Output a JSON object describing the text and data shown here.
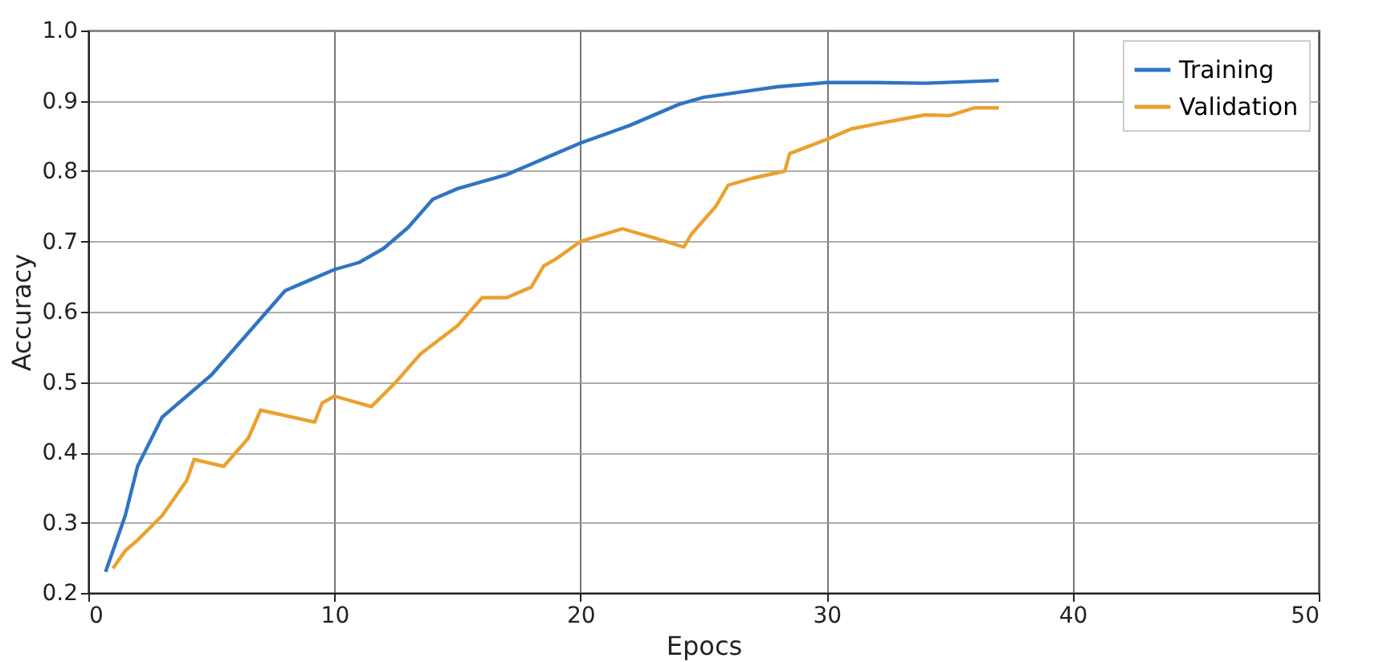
{
  "chart_data": {
    "type": "line",
    "xlabel": "Epocs",
    "ylabel": "Accuracy",
    "xlim": [
      0,
      50
    ],
    "xticks": [
      0,
      10,
      20,
      30,
      40,
      50
    ],
    "ylim": [
      0.2,
      1.0
    ],
    "yticks": [
      {
        "value": 0.2,
        "label": "0.2"
      },
      {
        "value": 0.3,
        "label": "0.3"
      },
      {
        "value": 0.4,
        "label": "0.4"
      },
      {
        "value": 0.5,
        "label": "0.5"
      },
      {
        "value": 0.6,
        "label": "0.6"
      },
      {
        "value": 0.7,
        "label": "0.7"
      },
      {
        "value": 0.8,
        "label": "0.8"
      },
      {
        "value": 0.9,
        "label": "0.9"
      },
      {
        "value": 1.0,
        "label": "1.0"
      }
    ],
    "grid": true,
    "legend": "top right",
    "series": [
      {
        "name": "Training",
        "color": "#2f74c4",
        "x": [
          0.7,
          1.5,
          2,
          3,
          4,
          5,
          6,
          7,
          8,
          9,
          10,
          11,
          12,
          13,
          14,
          15,
          16,
          17,
          18,
          19,
          20,
          22,
          24,
          25,
          27,
          28,
          30,
          32,
          34,
          37
        ],
        "values": [
          0.23,
          0.31,
          0.38,
          0.45,
          0.48,
          0.51,
          0.55,
          0.59,
          0.63,
          0.645,
          0.66,
          0.67,
          0.69,
          0.72,
          0.76,
          0.775,
          0.785,
          0.795,
          0.81,
          0.825,
          0.84,
          0.865,
          0.895,
          0.905,
          0.915,
          0.92,
          0.926,
          0.926,
          0.925,
          0.929
        ]
      },
      {
        "name": "Validation",
        "color": "#eba12e",
        "x": [
          1,
          1.5,
          2,
          3,
          4,
          4.3,
          5.5,
          6,
          6.5,
          7,
          9.2,
          9.5,
          10,
          11.5,
          12.5,
          13.5,
          15,
          16,
          17,
          18,
          18.5,
          19,
          20,
          21.7,
          23,
          24.2,
          24.5,
          25.5,
          26,
          27,
          28.3,
          28.5,
          30,
          31,
          32,
          34,
          35,
          36,
          37
        ],
        "values": [
          0.235,
          0.26,
          0.275,
          0.31,
          0.36,
          0.39,
          0.38,
          0.4,
          0.42,
          0.46,
          0.443,
          0.47,
          0.48,
          0.465,
          0.5,
          0.54,
          0.58,
          0.62,
          0.62,
          0.635,
          0.665,
          0.675,
          0.7,
          0.718,
          0.705,
          0.692,
          0.71,
          0.75,
          0.78,
          0.79,
          0.8,
          0.825,
          0.845,
          0.86,
          0.867,
          0.88,
          0.879,
          0.89,
          0.89
        ]
      }
    ]
  }
}
